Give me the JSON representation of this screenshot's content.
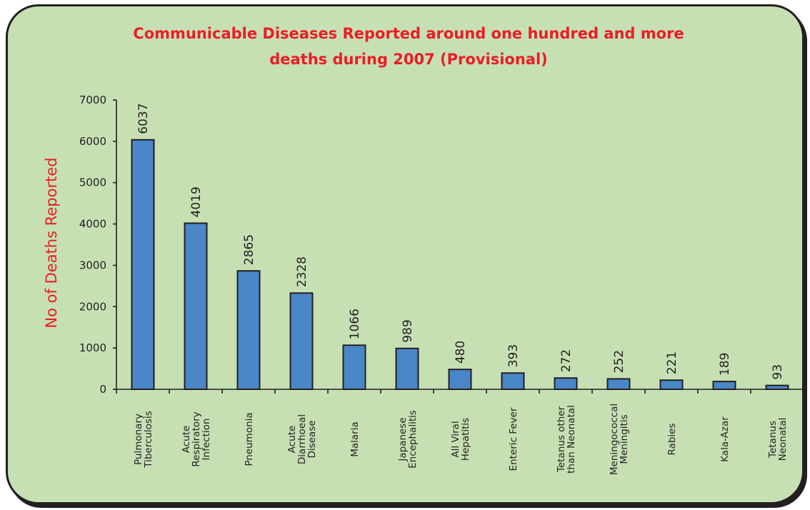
{
  "chart_data": {
    "type": "bar",
    "title": [
      "Communicable Diseases Reported around one hundred and more",
      "deaths during 2007 (Provisional)"
    ],
    "xlabel": "",
    "ylabel": "No of Deaths  Reported",
    "ylim": [
      0,
      7000
    ],
    "yticks": [
      "0",
      "1000",
      "2000",
      "3000",
      "4000",
      "5000",
      "6000",
      "7000"
    ],
    "grid": false,
    "legend": "none",
    "bar_color": "#4a86c8",
    "title_color": "#ed1c24",
    "background_color": "#c6e0b4",
    "categories": [
      [
        "Pulmonary",
        "Tiberculosis"
      ],
      [
        "Acute",
        "Respiratory",
        "Infection"
      ],
      [
        "Pneumonia"
      ],
      [
        "Acute",
        "Diarrhoeal",
        "Disease"
      ],
      [
        "Malaria"
      ],
      [
        "Japanese",
        "Encephalitis"
      ],
      [
        "All Viral",
        "Hepatitis"
      ],
      [
        "Enteric Fever"
      ],
      [
        "Tetanus other",
        "than Neonatal"
      ],
      [
        "Meningococcal",
        "Meningitis"
      ],
      [
        "Rabies"
      ],
      [
        "Kala-Azar"
      ],
      [
        "Tetanus",
        "Neonatal"
      ]
    ],
    "values": [
      6037,
      4019,
      2865,
      2328,
      1066,
      989,
      480,
      393,
      272,
      252,
      221,
      189,
      93
    ]
  }
}
